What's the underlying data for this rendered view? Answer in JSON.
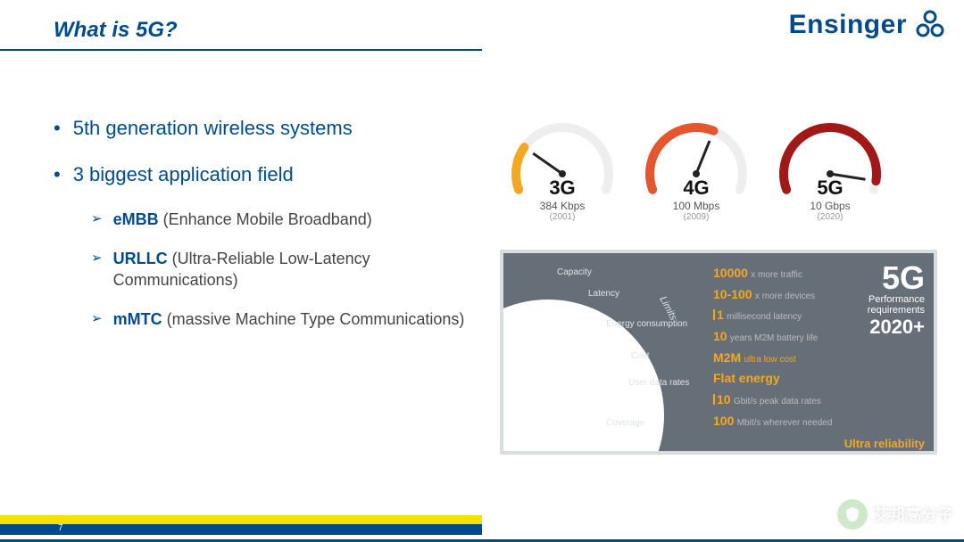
{
  "header": {
    "title": "What is 5G?",
    "brand": "Ensinger",
    "brand_color": "#004b8e"
  },
  "bullets": [
    {
      "text": "5th generation wireless systems"
    },
    {
      "text": "3 biggest application field"
    }
  ],
  "subbullets": [
    {
      "bold": "eMBB",
      "rest": " (Enhance Mobile Broadband)"
    },
    {
      "bold": "URLLC",
      "rest": " (Ultra-Reliable Low-Latency Communications)"
    },
    {
      "bold": "mMTC",
      "rest": " (massive Machine Type Communications)"
    }
  ],
  "gauges": [
    {
      "label": "3G",
      "speed": "384 Kbps",
      "year": "(2001)",
      "color": "#f5a623",
      "fill": 0.25
    },
    {
      "label": "4G",
      "speed": "100 Mbps",
      "year": "(2009)",
      "color": "#e4572e",
      "fill": 0.6
    },
    {
      "label": "5G",
      "speed": "10 Gbps",
      "year": "(2020)",
      "color": "#a01818",
      "fill": 0.95
    }
  ],
  "panel": {
    "title_big": "5G",
    "title_perf": "Performance",
    "title_req": "requirements",
    "title_year": "2020+",
    "ultra": "Ultra reliability",
    "limits_label": "Limits",
    "ray_labels": [
      "Capacity",
      "Latency",
      "Energy consumption",
      "Cost",
      "User data rates",
      "Coverage"
    ],
    "metrics": [
      {
        "num": "10000",
        "suf": "x more traffic"
      },
      {
        "num": "10-100",
        "suf": "x more devices"
      },
      {
        "bar": true,
        "num": "1",
        "suf": "millisecond latency"
      },
      {
        "num": "10",
        "suf": "years M2M battery life"
      },
      {
        "num": "M2M",
        "suf": "ultra low cost",
        "orange_all": true
      },
      {
        "num": "Flat energy",
        "suf": "",
        "orange_all": true
      },
      {
        "bar": true,
        "num": "10",
        "suf": "Gbit/s peak data rates"
      },
      {
        "num": "100",
        "suf": "Mbit/s wherever needed"
      }
    ],
    "bg": "#666f78",
    "accent": "#f5a623"
  },
  "footer": {
    "page": "7",
    "yellow": "#f5e000",
    "blue": "#004b8e"
  },
  "watermark": {
    "text": "艾邦高分子"
  }
}
